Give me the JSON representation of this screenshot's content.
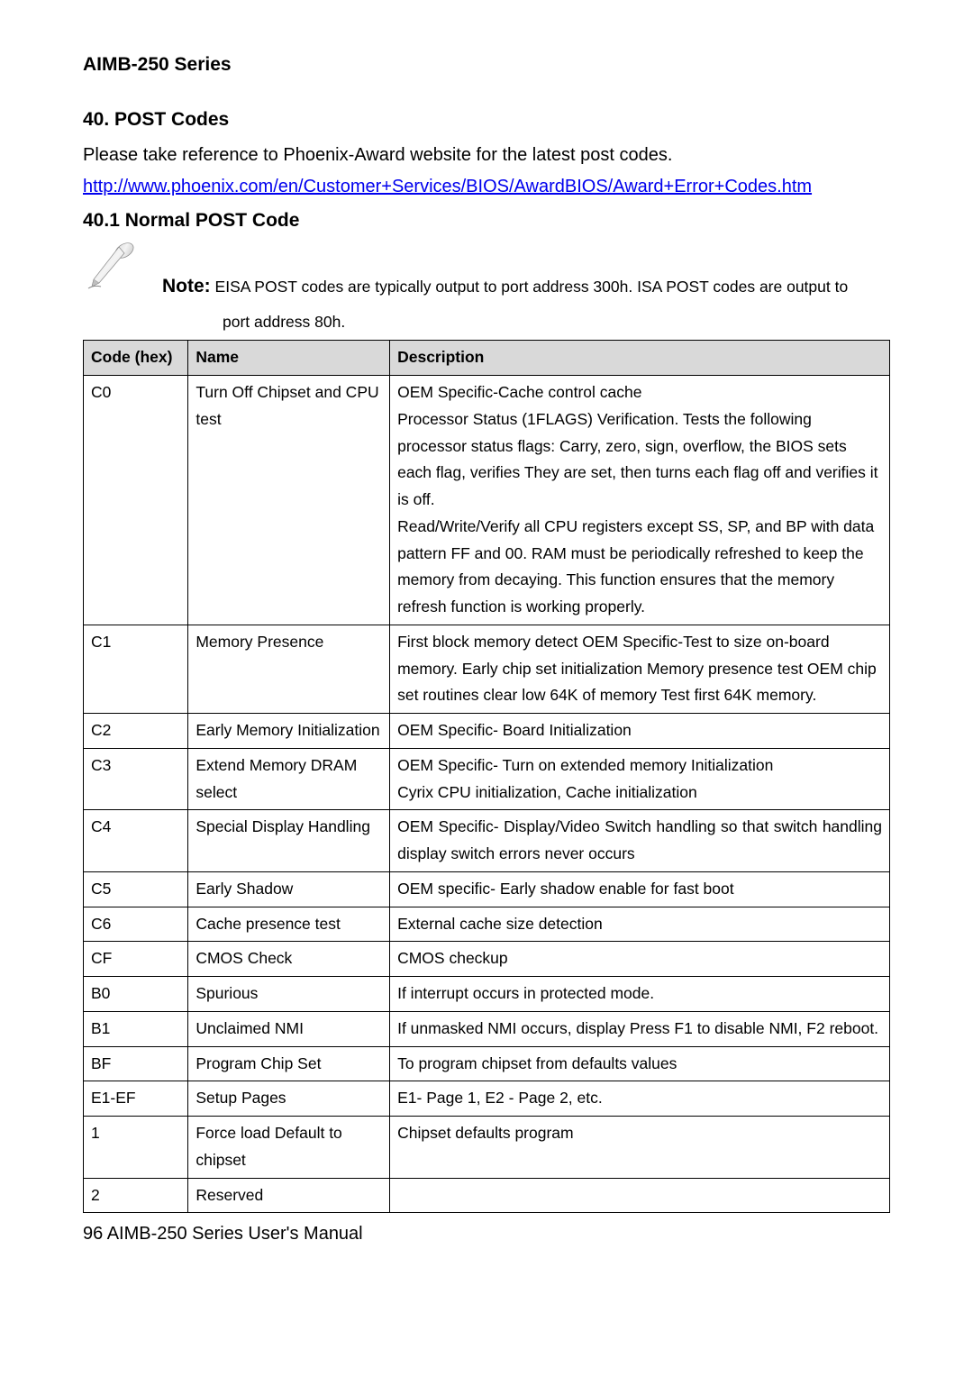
{
  "series_title": "AIMB-250 Series",
  "section_number_title": "40.  POST Codes",
  "intro": "Please take reference to Phoenix-Award website for the latest post codes.",
  "link_text": "http://www.phoenix.com/en/Customer+Services/BIOS/AwardBIOS/Award+Error+Codes.htm",
  "sub_heading": "40.1 Normal POST Code",
  "note_label": "Note:",
  "note_body_line1": " EISA POST codes are typically output to port address 300h. ISA POST codes are output to",
  "note_body_line2": "port address 80h.",
  "table": {
    "headers": {
      "code": "Code (hex)",
      "name": "Name",
      "desc": "Description"
    },
    "rows": [
      {
        "code": "C0",
        "name": "Turn Off Chipset and CPU test",
        "desc": "OEM Specific-Cache control cache\nProcessor Status (1FLAGS) Verification. Tests the following processor status flags: Carry, zero, sign, overflow, the BIOS sets each flag, verifies They are set, then turns each flag off and verifies it is off.\nRead/Write/Verify all CPU registers except SS, SP, and BP with data pattern FF and 00. RAM must be periodically refreshed to keep the memory from decaying. This function ensures that the memory refresh function is working properly."
      },
      {
        "code": "C1",
        "name": "Memory Presence",
        "desc": "First block memory detect OEM Specific-Test to size on-board memory. Early chip set initialization Memory presence test OEM chip set routines clear low 64K of memory Test first 64K memory."
      },
      {
        "code": "C2",
        "name": "Early Memory Initialization",
        "desc": "OEM Specific- Board Initialization"
      },
      {
        "code": "C3",
        "name": "Extend Memory DRAM select",
        "desc": "OEM Specific- Turn on extended memory Initialization\nCyrix CPU initialization, Cache initialization"
      },
      {
        "code": "C4",
        "name": "Special Display Handling",
        "desc": "OEM Specific- Display/Video Switch handling so that switch handling display switch errors never occurs",
        "justify": true
      },
      {
        "code": "C5",
        "name": "Early Shadow",
        "desc": "OEM specific- Early shadow enable for fast boot"
      },
      {
        "code": "C6",
        "name": "Cache presence test",
        "desc": "External cache size detection"
      },
      {
        "code": "CF",
        "name": "CMOS Check",
        "desc": "CMOS checkup"
      },
      {
        "code": "B0",
        "name": "Spurious",
        "desc": "If interrupt occurs in protected mode."
      },
      {
        "code": "B1",
        "name": "Unclaimed NMI",
        "desc": "If unmasked NMI occurs, display Press F1 to disable NMI, F2 reboot.",
        "justify": true
      },
      {
        "code": "BF",
        "name": "Program Chip Set",
        "desc": "To program chipset from defaults values"
      },
      {
        "code": "E1-EF",
        "name": "Setup Pages",
        "desc": "E1- Page 1, E2 - Page 2, etc."
      },
      {
        "code": "1",
        "name": "Force load Default to chipset",
        "desc": "Chipset defaults program"
      },
      {
        "code": "2",
        "name": "Reserved",
        "desc": ""
      }
    ]
  },
  "footer": "96 AIMB-250 Series User's Manual"
}
